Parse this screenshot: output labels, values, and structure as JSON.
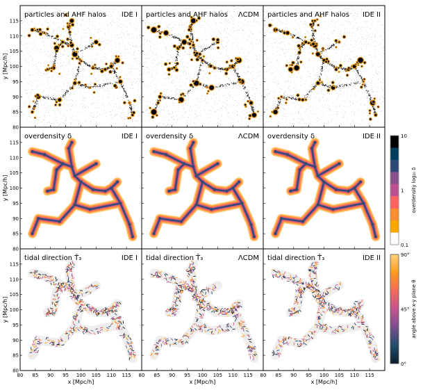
{
  "chart_data": {
    "type": "heatmap",
    "layout": "3 rows x 3 columns",
    "columns": [
      "IDE I",
      "ΛCDM",
      "IDE II"
    ],
    "rows": [
      {
        "title": "particles and AHF halos",
        "kind": "particles"
      },
      {
        "title": "overdensity δ",
        "kind": "density"
      },
      {
        "title": "tidal direction T̂₃",
        "kind": "tidal"
      }
    ],
    "xlabel": "x [Mpc/h]",
    "ylabel": "y [Mpc/h]",
    "xlim": [
      80,
      120
    ],
    "ylim": [
      80,
      120
    ],
    "xticks": [
      "80",
      "85",
      "90",
      "95",
      "100",
      "105",
      "110",
      "115"
    ],
    "yticks": [
      "80",
      "85",
      "90",
      "95",
      "100",
      "105",
      "110",
      "115"
    ],
    "colorbars": [
      {
        "label": "overdensity log₁₀ δ",
        "scale": "log",
        "range": [
          0.1,
          10
        ],
        "ticks": [
          "0.1",
          "1",
          "10"
        ],
        "levels": [
          "#ffffff",
          "#ffa600",
          "#ff8c2e",
          "#ff6361",
          "#bc5090",
          "#8a508f",
          "#2c4875",
          "#003f5c",
          "#000000"
        ]
      },
      {
        "label": "angle above x-y plane θ",
        "range": [
          0,
          90
        ],
        "ticks": [
          "0°",
          "45°",
          "90°"
        ],
        "colors": [
          "#0d1b2a",
          "#1f4e6b",
          "#7a4f8f",
          "#c2548f",
          "#f26b5b",
          "#ff9a1f",
          "#ffd27a"
        ]
      }
    ],
    "colors": {
      "halo": "#f0a020",
      "particles": "#000000",
      "mask_outline": "#bbbbbb"
    }
  }
}
